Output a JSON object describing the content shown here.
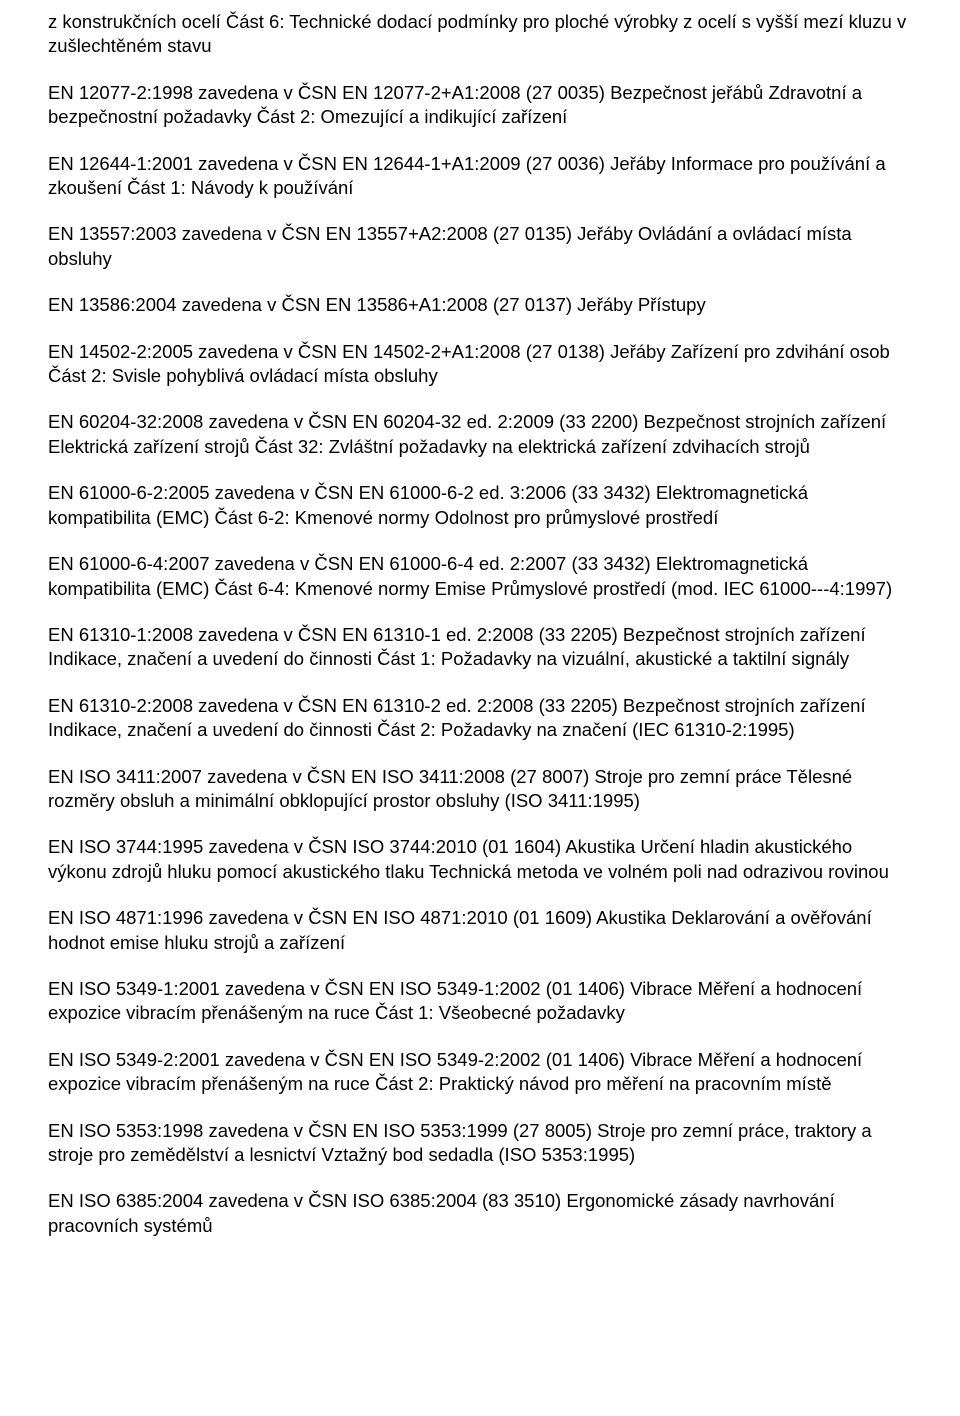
{
  "paragraphs": [
    "z konstrukčních ocelí Část 6: Technické dodací podmínky pro ploché výrobky z ocelí s vyšší mezí kluzu v zušlechtěném stavu",
    "EN 12077-2:1998 zavedena v ČSN EN 12077-2+A1:2008 (27 0035) Bezpečnost jeřábů Zdravotní a bezpečnostní požadavky Část 2: Omezující a indikující zařízení",
    "EN 12644-1:2001 zavedena v ČSN EN 12644-1+A1:2009 (27 0036) Jeřáby Informace pro používání a zkoušení Část 1: Návody k používání",
    "EN 13557:2003 zavedena v ČSN EN 13557+A2:2008 (27 0135) Jeřáby Ovládání a ovládací místa obsluhy",
    "EN 13586:2004 zavedena v ČSN EN 13586+A1:2008 (27 0137) Jeřáby Přístupy",
    "EN 14502-2:2005 zavedena v ČSN EN 14502-2+A1:2008 (27 0138) Jeřáby Zařízení pro zdvihání osob Část 2: Svisle pohyblivá ovládací místa obsluhy",
    "EN 60204-32:2008 zavedena v ČSN EN 60204-32 ed. 2:2009 (33 2200) Bezpečnost strojních zařízení Elektrická zařízení strojů Část 32: Zvláštní požadavky na elektrická zařízení zdvihacích strojů",
    "EN 61000-6-2:2005 zavedena v ČSN EN 61000-6-2 ed. 3:2006 (33 3432) Elektromagnetická kompatibilita (EMC) Část 6-2: Kmenové normy Odolnost pro průmyslové prostředí",
    "EN 61000-6-4:2007 zavedena v ČSN EN 61000-6-4 ed. 2:2007 (33 3432) Elektromagnetická kompatibilita (EMC) Část 6-4: Kmenové normy Emise Průmyslové prostředí (mod. IEC 61000---4:1997)",
    "EN 61310-1:2008 zavedena v ČSN EN 61310-1 ed. 2:2008 (33 2205) Bezpečnost strojních zařízení Indikace, značení a uvedení do činnosti Část 1: Požadavky na vizuální, akustické a taktilní signály",
    "EN 61310-2:2008 zavedena v ČSN EN 61310-2 ed. 2:2008 (33 2205) Bezpečnost strojních zařízení Indikace, značení a uvedení do činnosti Část 2: Požadavky na značení (IEC 61310-2:1995)",
    "EN ISO 3411:2007 zavedena v ČSN EN ISO 3411:2008 (27 8007) Stroje pro zemní práce Tělesné rozměry obsluh a minimální obklopující prostor obsluhy (ISO 3411:1995)",
    "EN ISO 3744:1995 zavedena v ČSN ISO 3744:2010 (01 1604) Akustika Určení hladin akustického výkonu zdrojů hluku pomocí akustického tlaku Technická metoda ve volném poli nad odrazivou rovinou",
    "EN ISO 4871:1996 zavedena v ČSN EN ISO 4871:2010 (01 1609) Akustika Deklarování a ověřování hodnot emise hluku strojů a zařízení",
    "EN ISO 5349-1:2001 zavedena v ČSN EN ISO 5349-1:2002 (01 1406) Vibrace Měření a hodnocení expozice vibracím přenášeným na ruce Část 1: Všeobecné požadavky",
    "EN ISO 5349-2:2001 zavedena v ČSN EN ISO 5349-2:2002 (01 1406) Vibrace Měření a hodnocení expozice vibracím přenášeným na ruce Část 2: Praktický návod pro měření na pracovním místě",
    "EN ISO 5353:1998 zavedena v ČSN EN ISO 5353:1999 (27 8005) Stroje pro zemní práce, traktory a stroje pro zemědělství a lesnictví Vztažný bod sedadla (ISO 5353:1995)",
    "EN ISO 6385:2004 zavedena v ČSN ISO 6385:2004 (83 3510) Ergonomické zásady navrhování pracovních systémů"
  ]
}
